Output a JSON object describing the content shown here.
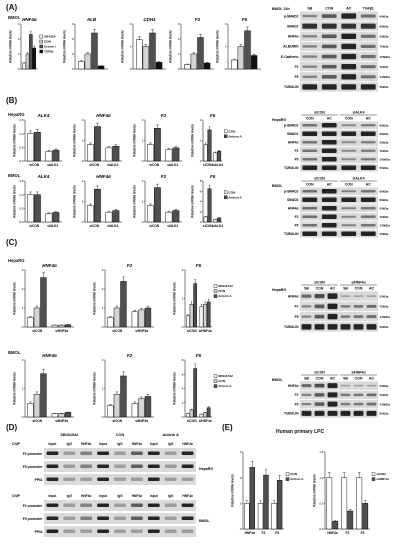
{
  "panels": {
    "A": "(A)",
    "B": "(B)",
    "C": "(C)",
    "D": "(D)",
    "E": "(E)"
  },
  "panel_A": {
    "row_label": "BMOL",
    "blot_title": "BMOL 24h",
    "blot_lanes": [
      "SB",
      "CON",
      "AC",
      "TGFβ1"
    ],
    "blot_rows": [
      {
        "name": "p-SMAD2",
        "size": "60kDa"
      },
      {
        "name": "SMAD2",
        "size": "60kDa"
      },
      {
        "name": "HNF4α",
        "size": "53kDa"
      },
      {
        "name": "ALBUMIN",
        "size": "70kDa"
      },
      {
        "name": "E-Cadherin",
        "size": "125kDa"
      },
      {
        "name": "F2",
        "size": "72kDa"
      },
      {
        "name": "F5",
        "size": "145kDa"
      },
      {
        "name": "TUBULIN",
        "size": "55kDa"
      }
    ]
  },
  "panel_B": {
    "row_labels": [
      "HepaRG",
      "BMOL"
    ],
    "blot_headers": [
      "siCON",
      "siALK4"
    ],
    "blot_lanes": [
      "CON",
      "AC",
      "CON",
      "AC"
    ],
    "blot1_title": "HepaRG",
    "blot2_title": "BMOL",
    "blot_rows": [
      {
        "name": "p-SMAD2",
        "size": "60kDa"
      },
      {
        "name": "SMAD2",
        "size": "60kDa"
      },
      {
        "name": "HNF4α",
        "size": "53kDa"
      },
      {
        "name": "F2",
        "size": "72kDa"
      },
      {
        "name": "F5",
        "size": "145kDa"
      },
      {
        "name": "TUBULIN",
        "size": "55kDa"
      }
    ]
  },
  "panel_C": {
    "row_labels": [
      "HepaRG",
      "BMOL"
    ],
    "blot_headers": [
      "siCON",
      "siHNF4α"
    ],
    "blot_lanes": [
      "SB",
      "CON",
      "AC",
      "SB",
      "CON",
      "AC"
    ],
    "blot1_title": "HepaRG",
    "blot2_title": "BMOL",
    "blot_rows": [
      {
        "name": "HNF4α",
        "size": "53kDa"
      },
      {
        "name": "F2",
        "size": "72kDa"
      },
      {
        "name": "F5",
        "size": "145kDa"
      },
      {
        "name": "TUBULIN",
        "size": "55kDa"
      }
    ]
  },
  "panel_D": {
    "groups": [
      "SB431542",
      "CON",
      "Activin A"
    ],
    "lane_labels": [
      "Input",
      "IgG",
      "HNF4α"
    ],
    "chip_label": "ChIP",
    "cells": [
      "HepaRG",
      "BMOL"
    ],
    "rows": [
      "F2 promoter",
      "F5 promoter",
      "PPIA"
    ]
  },
  "panel_E": {
    "title": "Human primary LPC"
  },
  "charts": {
    "A": [
      {
        "title": "HNF4α",
        "ylabel": "Relative mRNA levels",
        "ylim": [
          0,
          3
        ],
        "ticks": [
          "0",
          "1",
          "2",
          "3"
        ],
        "categories": [
          ""
        ],
        "values": [
          [
            0.4,
            1.0,
            2.3,
            1.4
          ]
        ],
        "legend": [
          "SB431542",
          "CON",
          "Activin A",
          "TGFβ1"
        ],
        "xticks": []
      },
      {
        "title": "ALB",
        "ylabel": "Relative mRNA levels",
        "ylim": [
          0,
          3
        ],
        "ticks": [
          "0",
          "1",
          "2",
          "3"
        ],
        "categories": [
          ""
        ],
        "values": [
          [
            0.5,
            1.0,
            2.4,
            0.2
          ]
        ],
        "legend": [],
        "xticks": []
      },
      {
        "title": "CDH1",
        "ylabel": "Relative mRNA levels",
        "ylim": [
          0,
          2
        ],
        "ticks": [
          "0",
          "1",
          "2"
        ],
        "categories": [
          ""
        ],
        "values": [
          [
            1.3,
            1.0,
            1.6,
            0.3
          ]
        ],
        "legend": [],
        "xticks": []
      },
      {
        "title": "F2",
        "ylabel": "Relative mRNA levels",
        "ylim": [
          0,
          3
        ],
        "ticks": [
          "0",
          "1",
          "2",
          "3"
        ],
        "categories": [
          ""
        ],
        "values": [
          [
            0.3,
            1.0,
            2.1,
            0.4
          ]
        ],
        "legend": [],
        "xticks": []
      },
      {
        "title": "F5",
        "ylabel": "Relative mRNA levels",
        "ylim": [
          0,
          2
        ],
        "ticks": [
          "0",
          "1",
          "2"
        ],
        "categories": [
          ""
        ],
        "values": [
          [
            0.4,
            1.0,
            1.7,
            0.6
          ]
        ],
        "legend": [],
        "xticks": []
      }
    ],
    "B_heparg": [
      {
        "title": "ALK4",
        "ylabel": "Relative mRNA levels",
        "ylim": [
          0,
          1.5
        ],
        "ticks": [
          "0.0",
          "0.5",
          "1.0",
          "1.5"
        ],
        "categories": [
          "siCON",
          "siALK4"
        ],
        "values": [
          [
            1.0,
            1.05
          ],
          [
            0.35,
            0.4
          ]
        ],
        "legend": [],
        "xticks": [
          "siCON",
          "siALK4"
        ]
      },
      {
        "title": "HNF4α",
        "ylabel": "Relative mRNA levels",
        "ylim": [
          0,
          2.5
        ],
        "ticks": [
          "0",
          "1",
          "2"
        ],
        "categories": [
          "siCON",
          "siALK4"
        ],
        "values": [
          [
            1.0,
            2.1
          ],
          [
            0.8,
            0.9
          ]
        ],
        "legend": [],
        "xticks": [
          "siCON",
          "siALK4"
        ]
      },
      {
        "title": "F2",
        "ylabel": "Relative mRNA levels",
        "ylim": [
          0,
          2.5
        ],
        "ticks": [
          "0",
          "1",
          "2"
        ],
        "categories": [
          "siCON",
          "siALK4"
        ],
        "values": [
          [
            1.0,
            2.0
          ],
          [
            0.7,
            0.8
          ]
        ],
        "legend": [],
        "xticks": [
          "siCON",
          "siALK4"
        ]
      },
      {
        "title": "F5",
        "ylabel": "Relative mRNA levels",
        "ylim": [
          0,
          2.5
        ],
        "ticks": [
          "0",
          "1",
          "2"
        ],
        "categories": [
          "siCON",
          "siALK4"
        ],
        "values": [
          [
            1.0,
            1.9
          ],
          [
            0.5,
            0.6
          ]
        ],
        "legend": [
          "CON",
          "Activin A"
        ],
        "xticks": [
          "siCON",
          "siALK4"
        ]
      }
    ],
    "B_bmol": [
      {
        "title": "ALK4",
        "ylabel": "Relative mRNA levels",
        "ylim": [
          0,
          1.5
        ],
        "ticks": [
          "0.0",
          "0.5",
          "1.0",
          "1.5"
        ],
        "categories": [
          "siCON",
          "siALK4"
        ],
        "values": [
          [
            1.0,
            1.0
          ],
          [
            0.3,
            0.35
          ]
        ],
        "legend": [],
        "xticks": [
          "siCON",
          "siALK4"
        ]
      },
      {
        "title": "HNF4α",
        "ylabel": "Relative mRNA levels",
        "ylim": [
          0,
          2.5
        ],
        "ticks": [
          "0",
          "1",
          "2"
        ],
        "categories": [
          "siCON",
          "siALK4"
        ],
        "values": [
          [
            1.0,
            2.0
          ],
          [
            0.6,
            0.7
          ]
        ],
        "legend": [],
        "xticks": [
          "siCON",
          "siALK4"
        ]
      },
      {
        "title": "F2",
        "ylabel": "Relative mRNA levels",
        "ylim": [
          0,
          2.5
        ],
        "ticks": [
          "0",
          "1",
          "2"
        ],
        "categories": [
          "siCON",
          "siALK4"
        ],
        "values": [
          [
            1.0,
            2.1
          ],
          [
            0.6,
            0.7
          ]
        ],
        "legend": [],
        "xticks": [
          "siCON",
          "siALK4"
        ]
      },
      {
        "title": "F5",
        "ylabel": "Relative mRNA levels",
        "ylim": [
          0,
          8
        ],
        "ticks": [
          "0",
          "2",
          "4",
          "6",
          "8"
        ],
        "categories": [
          "siCON",
          "siALK4"
        ],
        "values": [
          [
            1.0,
            6.5
          ],
          [
            0.5,
            0.8
          ]
        ],
        "legend": [
          "CON",
          "Activin A"
        ],
        "xticks": [
          "siCON",
          "siALK4"
        ]
      }
    ],
    "C_heparg": [
      {
        "title": "HNF4α",
        "ylabel": "Relative mRNA levels",
        "ylim": [
          0,
          3
        ],
        "ticks": [
          "0",
          "1",
          "2",
          "3"
        ],
        "categories": [
          "siCON",
          "siHNF4α"
        ],
        "values": [
          [
            0.5,
            1.0,
            2.6
          ],
          [
            0.1,
            0.1,
            0.12
          ]
        ],
        "legend": [],
        "xticks": [
          "siCON",
          "siHNF4α"
        ]
      },
      {
        "title": "F2",
        "ylabel": "Relative mRNA levels",
        "ylim": [
          0,
          3
        ],
        "ticks": [
          "0",
          "1",
          "2",
          "3"
        ],
        "categories": [
          "siCON",
          "siHNF4α"
        ],
        "values": [
          [
            0.5,
            1.0,
            2.4
          ],
          [
            0.8,
            0.9,
            1.0
          ]
        ],
        "legend": [],
        "xticks": [
          "siCON",
          "siHNF4α"
        ]
      },
      {
        "title": "F5",
        "ylabel": "Relative mRNA levels",
        "ylim": [
          0,
          2.5
        ],
        "ticks": [
          "0",
          "1",
          "2"
        ],
        "categories": [
          "siCON",
          "siHNF4α"
        ],
        "values": [
          [
            0.5,
            1.0,
            1.9
          ],
          [
            0.9,
            1.0,
            1.1
          ]
        ],
        "legend": [
          "SB431542",
          "CON",
          "Activin A"
        ],
        "xticks": [
          "siCON",
          "siHNF4α"
        ]
      }
    ],
    "C_bmol": [
      {
        "title": "HNF4α",
        "ylabel": "Relative mRNA levels",
        "ylim": [
          0,
          2.5
        ],
        "ticks": [
          "0",
          "1",
          "2"
        ],
        "categories": [
          "siCON",
          "siHNF4α"
        ],
        "values": [
          [
            0.6,
            1.0,
            1.9
          ],
          [
            0.15,
            0.15,
            0.2
          ]
        ],
        "legend": [],
        "xticks": [
          "siCON",
          "siHNF4α"
        ]
      },
      {
        "title": "F2",
        "ylabel": "Relative mRNA levels",
        "ylim": [
          0,
          2.5
        ],
        "ticks": [
          "0",
          "1",
          "2"
        ],
        "categories": [
          "siCON",
          "siHNF4α"
        ],
        "values": [
          [
            0.5,
            1.0,
            1.8
          ],
          [
            0.6,
            0.8,
            0.9
          ]
        ],
        "legend": [],
        "xticks": [
          "siCON",
          "siHNF4α"
        ]
      },
      {
        "title": "F5",
        "ylabel": "Relative mRNA levels",
        "ylim": [
          0,
          8
        ],
        "ticks": [
          "0",
          "2",
          "4",
          "6",
          "8"
        ],
        "categories": [
          "siCON",
          "siHNF4α"
        ],
        "values": [
          [
            0.5,
            1.0,
            6.8
          ],
          [
            0.4,
            0.6,
            1.3
          ]
        ],
        "legend": [
          "SB431542",
          "CON",
          "Activin A"
        ],
        "xticks": [
          "siCON",
          "siHNF4α"
        ]
      }
    ],
    "E": [
      {
        "title": "",
        "ylabel": "Relative mRNA levels",
        "ylim": [
          0,
          3
        ],
        "ticks": [
          "0",
          "1",
          "2",
          "3"
        ],
        "categories": [
          "HNF4α",
          "F2",
          "F5"
        ],
        "values": [
          [
            1.0,
            2.4
          ],
          [
            1.0,
            2.1
          ],
          [
            1.0,
            1.9
          ]
        ],
        "legend": [
          "CON",
          "Activin A"
        ],
        "xticks": [
          "HNF4α",
          "F2",
          "F5"
        ]
      },
      {
        "title": "",
        "ylabel": "Relative mRNA levels",
        "ylim": [
          0,
          1.5
        ],
        "ticks": [
          "0.0",
          "0.5",
          "1.0",
          "1.5"
        ],
        "categories": [
          "HNF4α",
          "F2",
          "F5"
        ],
        "values": [
          [
            1.0,
            0.15
          ],
          [
            1.0,
            0.35
          ],
          [
            1.0,
            0.5
          ]
        ],
        "legend": [
          "siCON",
          "siHNF4α"
        ],
        "xticks": [
          "HNF4α",
          "F2",
          "F5"
        ]
      }
    ]
  },
  "colors": {
    "bar_white": "#ffffff",
    "bar_light": "#d4d4d4",
    "bar_dark": "#505050",
    "bar_black": "#111111",
    "blot_bg": "#dadada",
    "band": "#1a1a1a"
  }
}
